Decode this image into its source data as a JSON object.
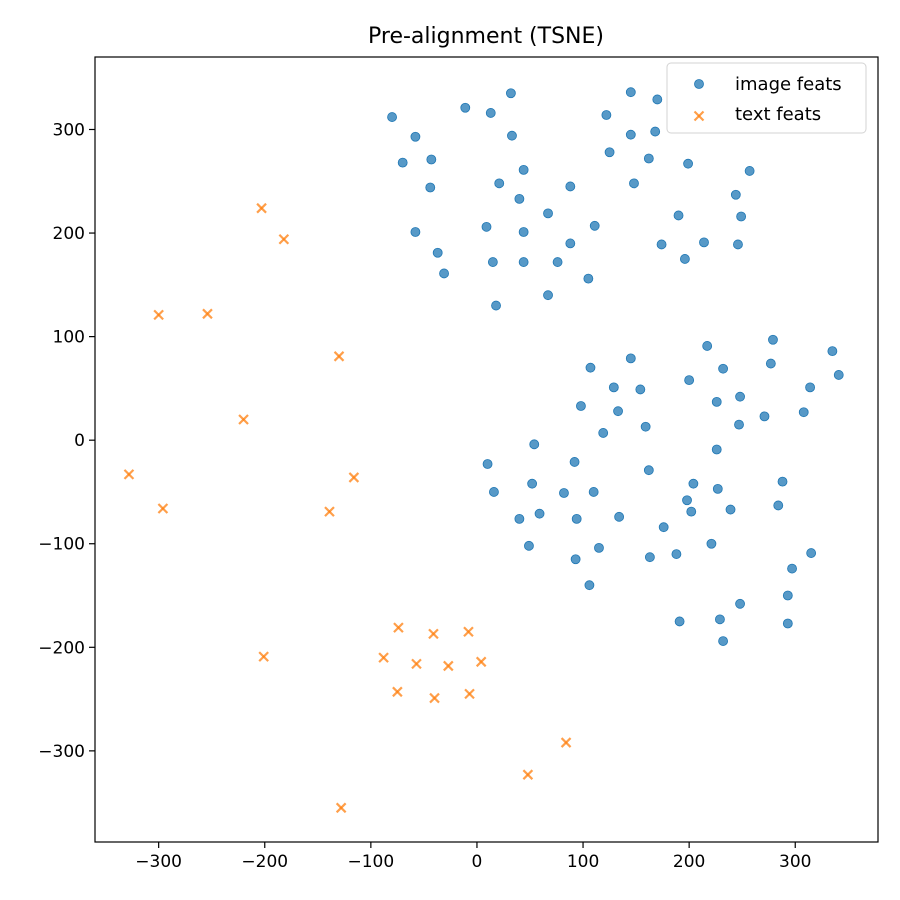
{
  "chart_data": {
    "type": "scatter",
    "title": "Pre-alignment (TSNE)",
    "xlabel": "",
    "ylabel": "",
    "xlim": [
      -360,
      378
    ],
    "ylim": [
      -388,
      370
    ],
    "xticks": [
      -300,
      -200,
      -100,
      0,
      100,
      200,
      300
    ],
    "yticks": [
      -300,
      -200,
      -100,
      0,
      100,
      200,
      300
    ],
    "xtick_labels": [
      "−300",
      "−200",
      "−100",
      "0",
      "100",
      "200",
      "300"
    ],
    "ytick_labels": [
      "−300",
      "−200",
      "−100",
      "0",
      "100",
      "200",
      "300"
    ],
    "grid": false,
    "legend_position": "top-right",
    "series": [
      {
        "name": "image feats",
        "marker": "circle",
        "color": "#1f77b4",
        "points": [
          [
            -80,
            312
          ],
          [
            -58,
            293
          ],
          [
            -70,
            268
          ],
          [
            -43,
            271
          ],
          [
            -44,
            244
          ],
          [
            -58,
            201
          ],
          [
            -37,
            181
          ],
          [
            -31,
            161
          ],
          [
            -11,
            321
          ],
          [
            13,
            316
          ],
          [
            32,
            335
          ],
          [
            33,
            294
          ],
          [
            44,
            261
          ],
          [
            21,
            248
          ],
          [
            40,
            233
          ],
          [
            9,
            206
          ],
          [
            44,
            201
          ],
          [
            15,
            172
          ],
          [
            44,
            172
          ],
          [
            18,
            130
          ],
          [
            67,
            219
          ],
          [
            88,
            245
          ],
          [
            88,
            190
          ],
          [
            76,
            172
          ],
          [
            67,
            140
          ],
          [
            105,
            156
          ],
          [
            111,
            207
          ],
          [
            122,
            314
          ],
          [
            125,
            278
          ],
          [
            145,
            336
          ],
          [
            145,
            295
          ],
          [
            148,
            248
          ],
          [
            162,
            272
          ],
          [
            168,
            298
          ],
          [
            170,
            329
          ],
          [
            174,
            189
          ],
          [
            190,
            217
          ],
          [
            196,
            175
          ],
          [
            199,
            267
          ],
          [
            214,
            191
          ],
          [
            244,
            237
          ],
          [
            249,
            216
          ],
          [
            246,
            189
          ],
          [
            257,
            260
          ],
          [
            107,
            70
          ],
          [
            145,
            79
          ],
          [
            129,
            51
          ],
          [
            154,
            49
          ],
          [
            98,
            33
          ],
          [
            133,
            28
          ],
          [
            119,
            7
          ],
          [
            159,
            13
          ],
          [
            54,
            -4
          ],
          [
            10,
            -23
          ],
          [
            16,
            -50
          ],
          [
            52,
            -42
          ],
          [
            82,
            -51
          ],
          [
            92,
            -21
          ],
          [
            110,
            -50
          ],
          [
            59,
            -71
          ],
          [
            40,
            -76
          ],
          [
            94,
            -76
          ],
          [
            134,
            -74
          ],
          [
            162,
            -29
          ],
          [
            176,
            -84
          ],
          [
            49,
            -102
          ],
          [
            93,
            -115
          ],
          [
            115,
            -104
          ],
          [
            106,
            -140
          ],
          [
            163,
            -113
          ],
          [
            188,
            -110
          ],
          [
            191,
            -175
          ],
          [
            198,
            -58
          ],
          [
            204,
            -42
          ],
          [
            202,
            -69
          ],
          [
            221,
            -100
          ],
          [
            227,
            -47
          ],
          [
            239,
            -67
          ],
          [
            229,
            -173
          ],
          [
            232,
            -194
          ],
          [
            248,
            -158
          ],
          [
            217,
            91
          ],
          [
            232,
            69
          ],
          [
            200,
            58
          ],
          [
            226,
            37
          ],
          [
            248,
            42
          ],
          [
            247,
            15
          ],
          [
            226,
            -9
          ],
          [
            277,
            74
          ],
          [
            279,
            97
          ],
          [
            314,
            51
          ],
          [
            335,
            86
          ],
          [
            341,
            63
          ],
          [
            271,
            23
          ],
          [
            308,
            27
          ],
          [
            288,
            -40
          ],
          [
            284,
            -63
          ],
          [
            315,
            -109
          ],
          [
            297,
            -124
          ],
          [
            293,
            -150
          ],
          [
            293,
            -177
          ]
        ]
      },
      {
        "name": "text feats",
        "marker": "x",
        "color": "#ff7f0e",
        "points": [
          [
            -203,
            224
          ],
          [
            -182,
            194
          ],
          [
            -300,
            121
          ],
          [
            -254,
            122
          ],
          [
            -130,
            81
          ],
          [
            -220,
            20
          ],
          [
            -328,
            -33
          ],
          [
            -296,
            -66
          ],
          [
            -116,
            -36
          ],
          [
            -139,
            -69
          ],
          [
            -201,
            -209
          ],
          [
            -74,
            -181
          ],
          [
            -88,
            -210
          ],
          [
            -57,
            -216
          ],
          [
            -41,
            -187
          ],
          [
            -27,
            -218
          ],
          [
            -8,
            -185
          ],
          [
            4,
            -214
          ],
          [
            -75,
            -243
          ],
          [
            -40,
            -249
          ],
          [
            -7,
            -245
          ],
          [
            84,
            -292
          ],
          [
            48,
            -323
          ],
          [
            -128,
            -355
          ]
        ]
      }
    ]
  }
}
